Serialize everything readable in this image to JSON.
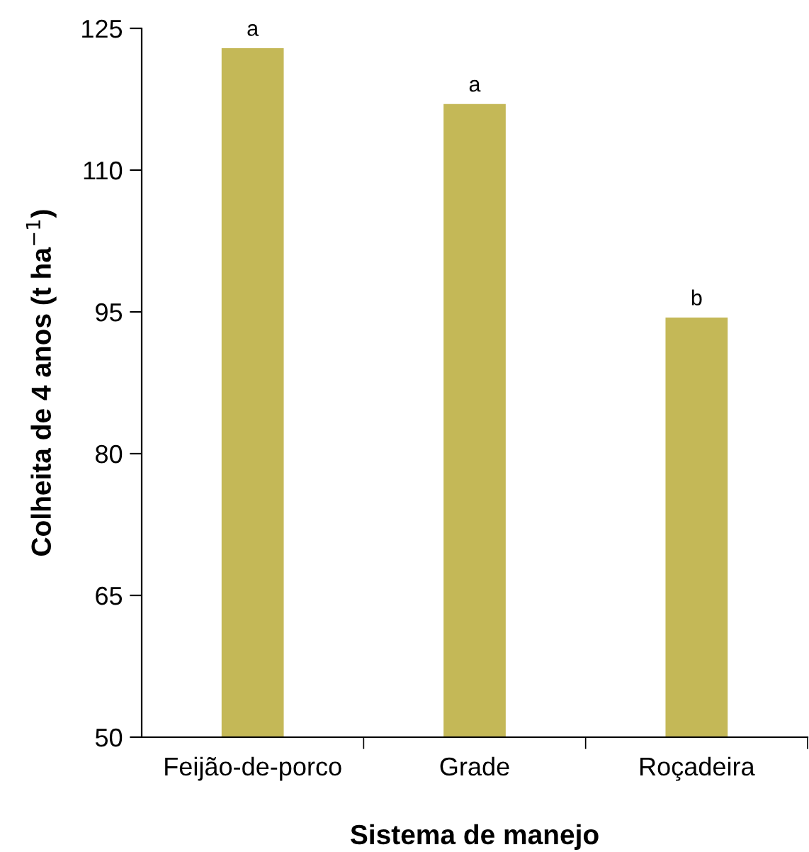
{
  "chart_data": {
    "type": "bar",
    "xlabel": "Sistema de manejo",
    "ylabel": "Colheita de 4 anos (t ha$^{−1}$)",
    "categories": [
      "Feijão-de-porco",
      "Grade",
      "Roçadeira"
    ],
    "values": [
      122.9,
      117.0,
      94.4
    ],
    "color": "#c4b857",
    "ylim": [
      50,
      125
    ],
    "yticks": [
      50,
      65,
      80,
      95,
      110,
      125
    ],
    "grid": false,
    "legend": false,
    "annotations": [
      {
        "text": "a",
        "x": "Feijão-de-porco",
        "y": 122.9
      },
      {
        "text": "a",
        "x": "Grade",
        "y": 117.0
      },
      {
        "text": "b",
        "x": "Roçadeira",
        "y": 94.4
      }
    ]
  }
}
